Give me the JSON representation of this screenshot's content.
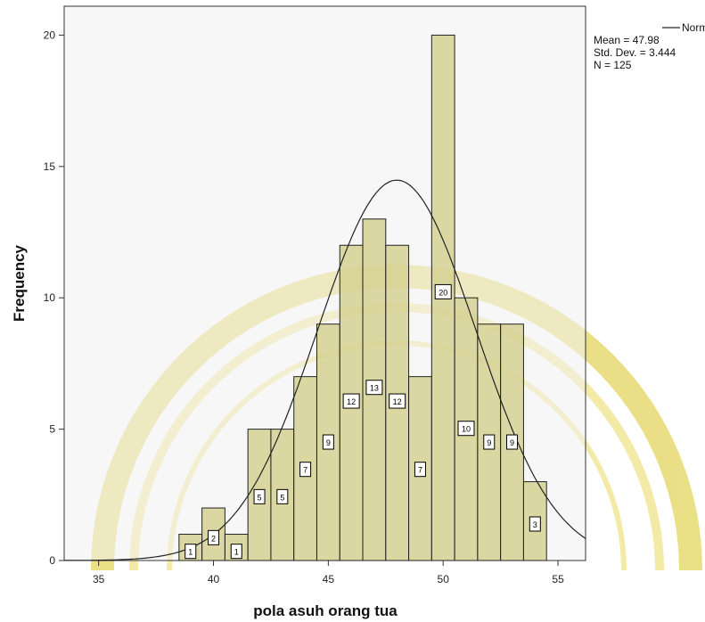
{
  "chart_data": {
    "type": "bar",
    "subtype": "histogram",
    "xlabel": "pola asuh orang tua",
    "ylabel": "Frequency",
    "xlim": [
      33.5,
      56.2
    ],
    "ylim": [
      0,
      21.1
    ],
    "x_ticks": [
      35,
      40,
      45,
      50,
      55
    ],
    "y_ticks": [
      0,
      5,
      10,
      15,
      20
    ],
    "bin_width": 1,
    "bins": [
      {
        "center": 39,
        "count": 1,
        "label": "1"
      },
      {
        "center": 40,
        "count": 2,
        "label": "2"
      },
      {
        "center": 41,
        "count": 1,
        "label": "1"
      },
      {
        "center": 42,
        "count": 5,
        "label": "5"
      },
      {
        "center": 43,
        "count": 5,
        "label": "5"
      },
      {
        "center": 44,
        "count": 7,
        "label": "7"
      },
      {
        "center": 45,
        "count": 9,
        "label": "9"
      },
      {
        "center": 46,
        "count": 12,
        "label": "12"
      },
      {
        "center": 47,
        "count": 13,
        "label": "13"
      },
      {
        "center": 48,
        "count": 12,
        "label": "12"
      },
      {
        "center": 49,
        "count": 7,
        "label": "7"
      },
      {
        "center": 50,
        "count": 20,
        "label": "20"
      },
      {
        "center": 51,
        "count": 10,
        "label": "10"
      },
      {
        "center": 52,
        "count": 9,
        "label": "9"
      },
      {
        "center": 53,
        "count": 9,
        "label": "9"
      },
      {
        "center": 54,
        "count": 3,
        "label": "3"
      }
    ],
    "normal_curve": {
      "mean": 47.98,
      "sd": 3.444,
      "n": 125
    },
    "legend": {
      "position": "top-right",
      "curve_label": "Normal",
      "mean_text": "Mean = 47.98",
      "sd_text": "Std. Dev. = 3.444",
      "n_text": "N = 125"
    },
    "grid": false
  },
  "colors": {
    "plot_background": "#f0f0f0",
    "bar_fill": "#d3ce8c",
    "bar_stroke": "#222222",
    "curve": "#222222",
    "watermark": "#ecdc3a"
  }
}
